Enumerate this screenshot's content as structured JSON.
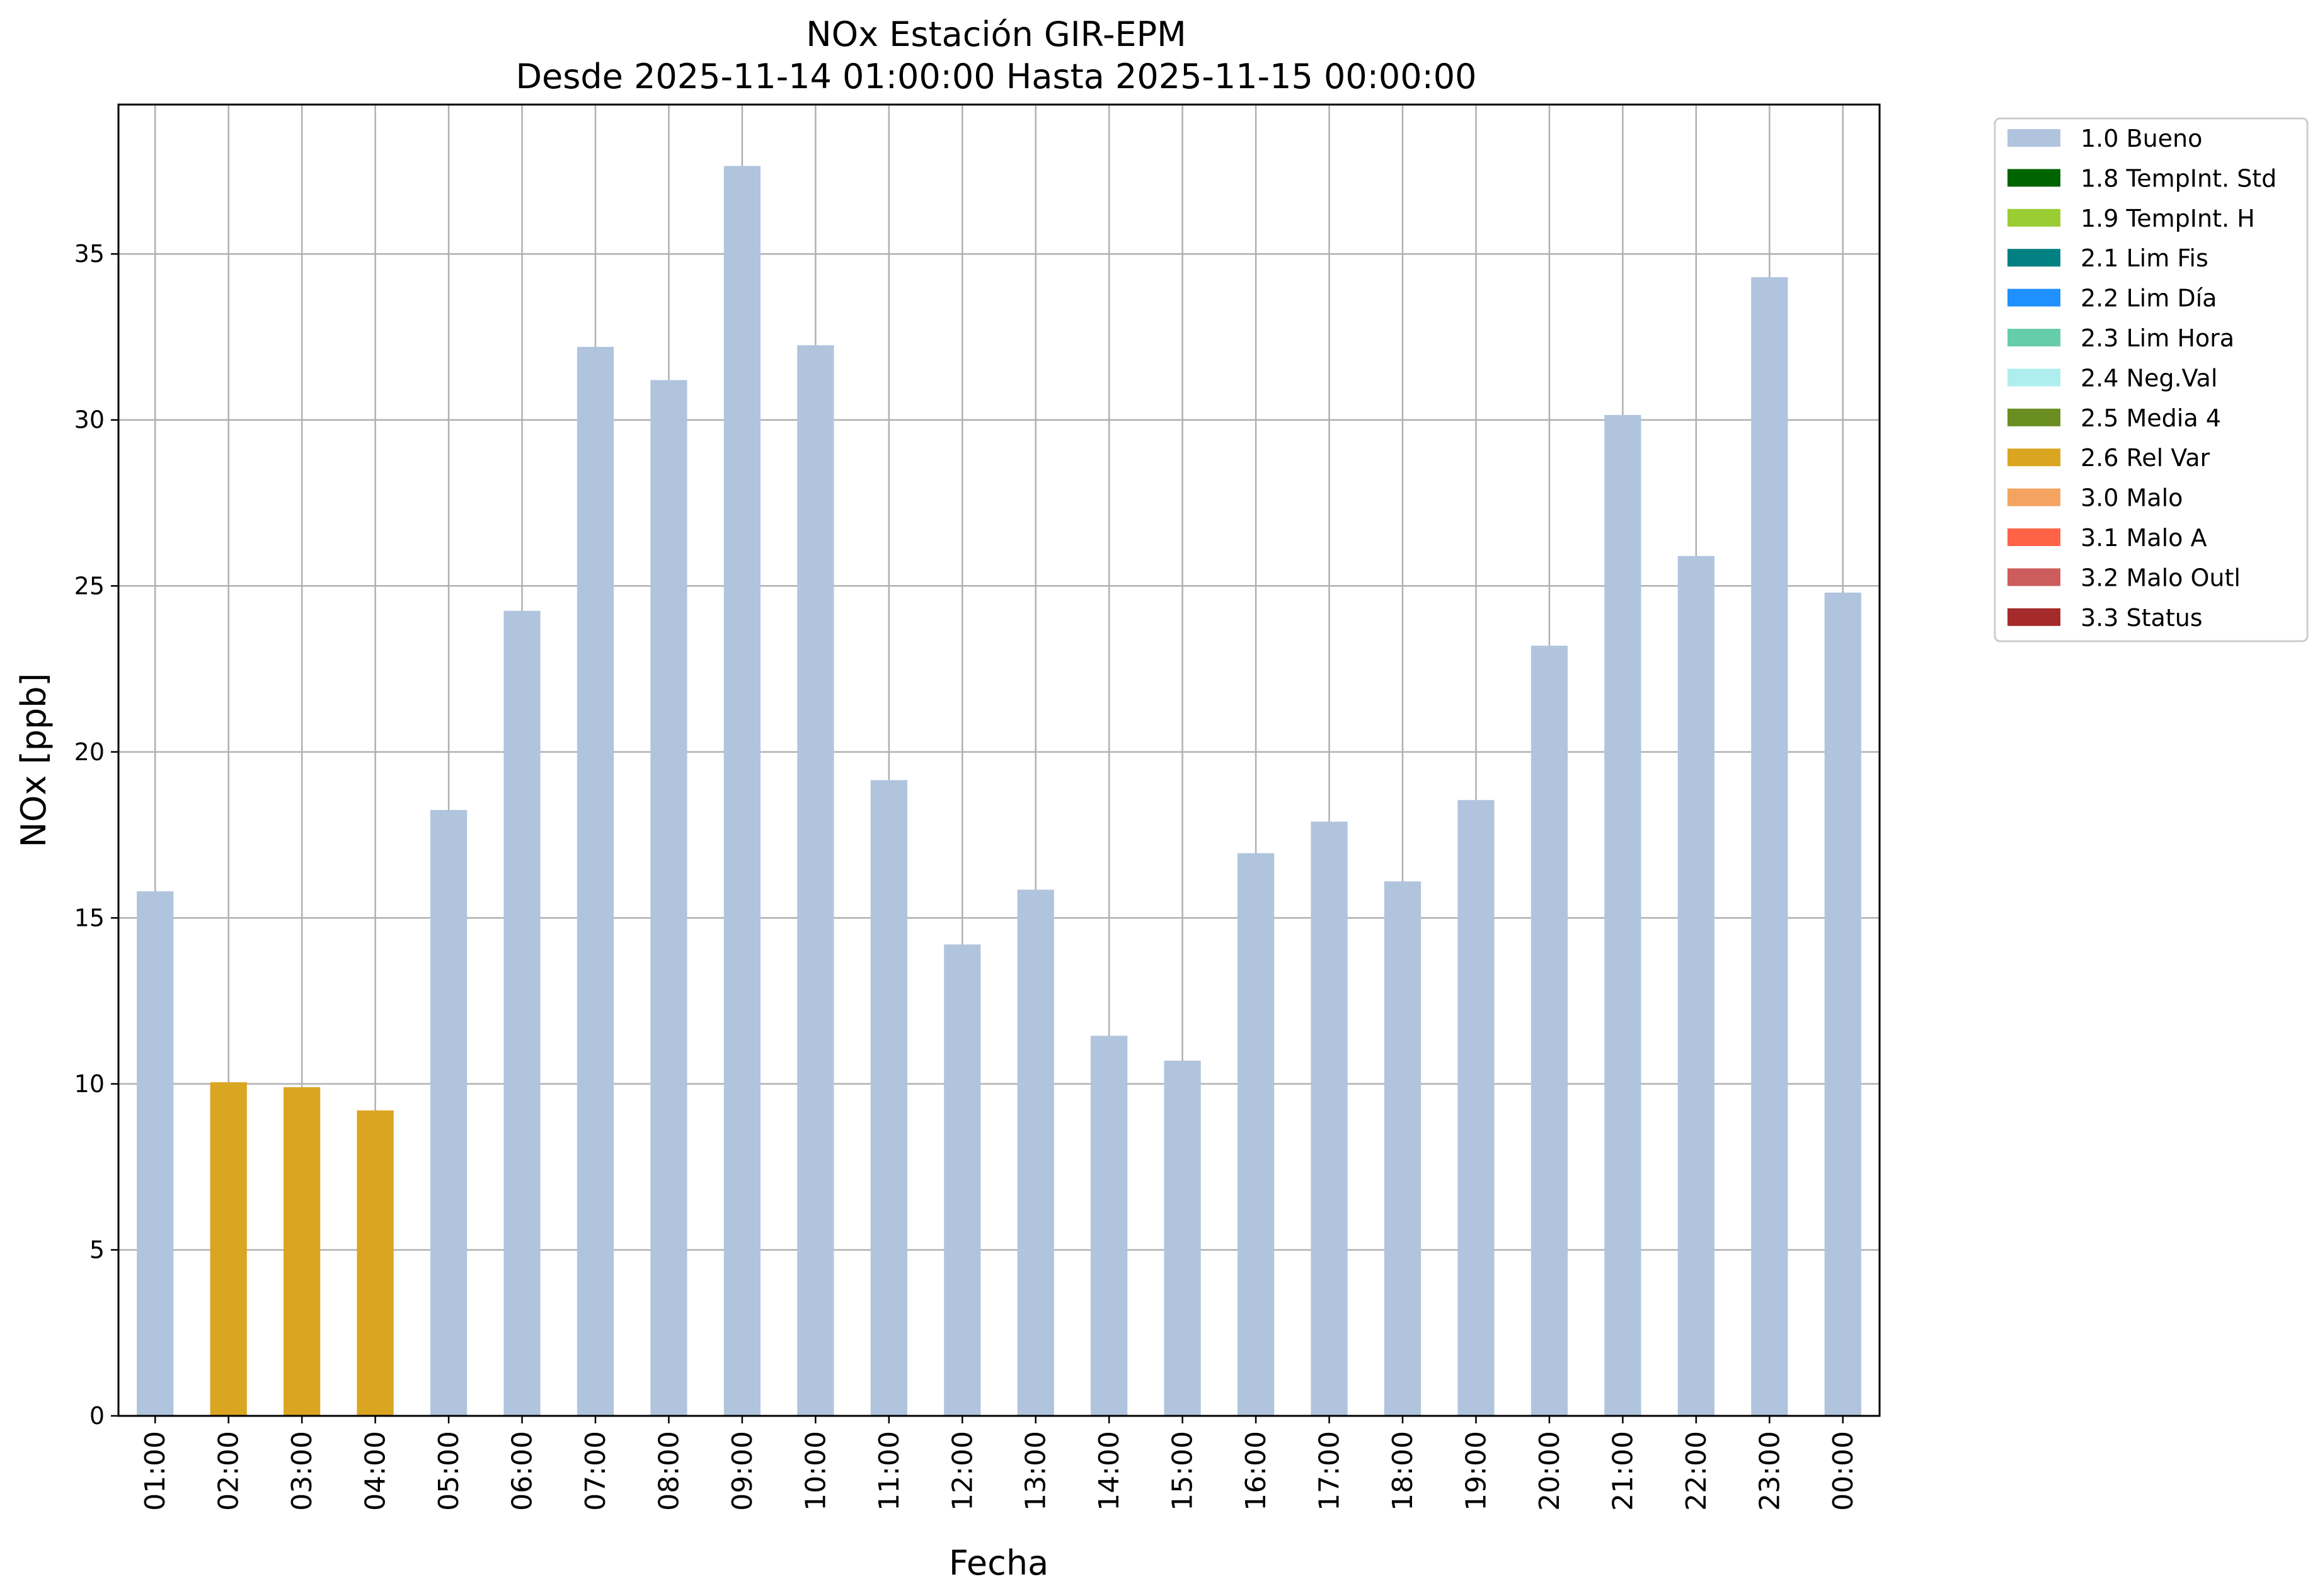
{
  "chart_data": {
    "type": "bar",
    "title": [
      "NOx Estación GIR-EPM",
      "Desde 2025-11-14 01:00:00 Hasta 2025-11-15 00:00:00"
    ],
    "xlabel": "Fecha",
    "ylabel": "NOx [ppb]",
    "ylim": [
      0,
      39.5
    ],
    "yticks": [
      0,
      5,
      10,
      15,
      20,
      25,
      30,
      35
    ],
    "grid": true,
    "legend_position": "outside-right",
    "categories": [
      "01:00",
      "02:00",
      "03:00",
      "04:00",
      "05:00",
      "06:00",
      "07:00",
      "08:00",
      "09:00",
      "10:00",
      "11:00",
      "12:00",
      "13:00",
      "14:00",
      "15:00",
      "16:00",
      "17:00",
      "18:00",
      "19:00",
      "20:00",
      "21:00",
      "22:00",
      "23:00",
      "00:00"
    ],
    "values": [
      15.8,
      10.05,
      9.9,
      9.2,
      18.25,
      24.25,
      32.2,
      31.2,
      37.65,
      32.25,
      19.15,
      14.2,
      15.85,
      11.45,
      10.7,
      16.95,
      17.9,
      16.1,
      18.55,
      23.2,
      30.15,
      25.9,
      34.3,
      24.8
    ],
    "flags": [
      "1.0 Bueno",
      "2.6 Rel Var",
      "2.6 Rel Var",
      "2.6 Rel Var",
      "1.0 Bueno",
      "1.0 Bueno",
      "1.0 Bueno",
      "1.0 Bueno",
      "1.0 Bueno",
      "1.0 Bueno",
      "1.0 Bueno",
      "1.0 Bueno",
      "1.0 Bueno",
      "1.0 Bueno",
      "1.0 Bueno",
      "1.0 Bueno",
      "1.0 Bueno",
      "1.0 Bueno",
      "1.0 Bueno",
      "1.0 Bueno",
      "1.0 Bueno",
      "1.0 Bueno",
      "1.0 Bueno",
      "1.0 Bueno"
    ],
    "legend": [
      {
        "label": "1.0 Bueno",
        "color": "#b0c4de"
      },
      {
        "label": "1.8 TempInt. Std",
        "color": "#006400"
      },
      {
        "label": "1.9 TempInt. H",
        "color": "#9acd32"
      },
      {
        "label": "2.1 Lim Fis",
        "color": "#008080"
      },
      {
        "label": "2.2 Lim Día",
        "color": "#1e90ff"
      },
      {
        "label": "2.3 Lim Hora",
        "color": "#66cdaa"
      },
      {
        "label": "2.4 Neg.Val",
        "color": "#afeeee"
      },
      {
        "label": "2.5 Media 4",
        "color": "#6b8e23"
      },
      {
        "label": "2.6 Rel Var",
        "color": "#daa520"
      },
      {
        "label": "3.0 Malo",
        "color": "#f4a460"
      },
      {
        "label": "3.1 Malo A",
        "color": "#ff6347"
      },
      {
        "label": "3.2 Malo Outl",
        "color": "#cd5c5c"
      },
      {
        "label": "3.3 Status",
        "color": "#a52a2a"
      }
    ]
  }
}
